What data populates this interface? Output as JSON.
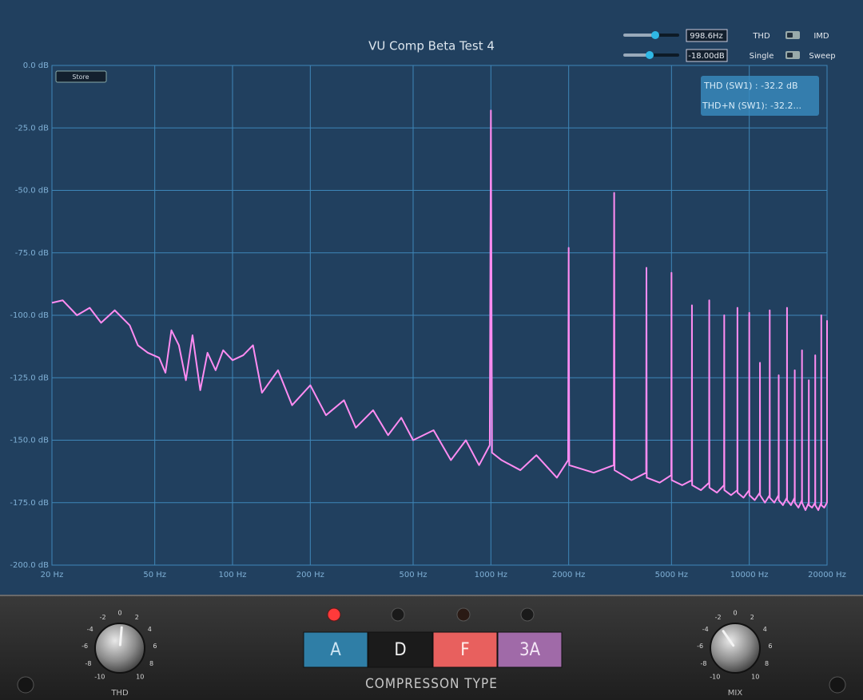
{
  "title": "VU Comp Beta Test 4",
  "store_button": "Store",
  "controls": {
    "frequency": "998.6Hz",
    "level": "-18.00dB",
    "mode_left": "THD",
    "mode_right": "IMD",
    "sweep_left": "Single",
    "sweep_right": "Sweep"
  },
  "info": {
    "thd": "THD (SW1) : -32.2 dB",
    "thdn": "THD+N (SW1): -32.2..."
  },
  "chart_data": {
    "type": "line",
    "xscale": "log",
    "grid": true,
    "color": "#ff8cf2",
    "xlim": [
      20,
      20000
    ],
    "ylim": [
      -200,
      0
    ],
    "xticks": [
      {
        "value": 20,
        "label": "20 Hz"
      },
      {
        "value": 50,
        "label": "50 Hz"
      },
      {
        "value": 100,
        "label": "100 Hz"
      },
      {
        "value": 200,
        "label": "200 Hz"
      },
      {
        "value": 500,
        "label": "500 Hz"
      },
      {
        "value": 1000,
        "label": "1000 Hz"
      },
      {
        "value": 2000,
        "label": "2000 Hz"
      },
      {
        "value": 5000,
        "label": "5000 Hz"
      },
      {
        "value": 10000,
        "label": "10000 Hz"
      },
      {
        "value": 20000,
        "label": "20000 Hz"
      }
    ],
    "yticks": [
      {
        "value": 0,
        "label": "0.0 dB"
      },
      {
        "value": -25,
        "label": "-25.0 dB"
      },
      {
        "value": -50,
        "label": "-50.0 dB"
      },
      {
        "value": -75,
        "label": "-75.0 dB"
      },
      {
        "value": -100,
        "label": "-100.0 dB"
      },
      {
        "value": -125,
        "label": "-125.0 dB"
      },
      {
        "value": -150,
        "label": "-150.0 dB"
      },
      {
        "value": -175,
        "label": "-175.0 dB"
      },
      {
        "value": -200,
        "label": "-200.0 dB"
      }
    ],
    "x": [
      20,
      22,
      25,
      28,
      31,
      35,
      40,
      43,
      47,
      52,
      55,
      58,
      62,
      66,
      70,
      75,
      80,
      86,
      92,
      100,
      110,
      120,
      130,
      150,
      170,
      200,
      230,
      270,
      300,
      350,
      400,
      450,
      500,
      600,
      700,
      800,
      900,
      990,
      1000,
      1010,
      1100,
      1300,
      1500,
      1800,
      1990,
      2000,
      2010,
      2500,
      2990,
      3000,
      3010,
      3500,
      3990,
      4000,
      4010,
      4500,
      4990,
      5000,
      5010,
      5500,
      5990,
      6000,
      6010,
      6500,
      6990,
      7000,
      7010,
      7500,
      7990,
      8000,
      8010,
      8500,
      8990,
      9000,
      9010,
      9500,
      9990,
      10000,
      10010,
      10500,
      10990,
      11000,
      11010,
      11500,
      11990,
      12000,
      12010,
      12500,
      12990,
      13000,
      13010,
      13500,
      13990,
      14000,
      14010,
      14500,
      14990,
      15000,
      15010,
      15500,
      15990,
      16000,
      16010,
      16500,
      16990,
      17000,
      17010,
      17500,
      17990,
      18000,
      18010,
      18500,
      18990,
      19000,
      19010,
      19500,
      19990,
      20000
    ],
    "values": [
      -95,
      -94,
      -100,
      -97,
      -103,
      -98,
      -104,
      -112,
      -115,
      -117,
      -123,
      -106,
      -112,
      -126,
      -108,
      -130,
      -115,
      -122,
      -114,
      -118,
      -116,
      -112,
      -131,
      -122,
      -136,
      -128,
      -140,
      -134,
      -145,
      -138,
      -148,
      -141,
      -150,
      -146,
      -158,
      -150,
      -160,
      -152,
      -18,
      -155,
      -158,
      -162,
      -156,
      -165,
      -158,
      -73,
      -160,
      -163,
      -160,
      -51,
      -162,
      -166,
      -163,
      -81,
      -165,
      -167,
      -164,
      -83,
      -166,
      -168,
      -166,
      -96,
      -168,
      -170,
      -167,
      -94,
      -169,
      -171,
      -168,
      -100,
      -170,
      -172,
      -170,
      -97,
      -171,
      -173,
      -170,
      -99,
      -172,
      -174,
      -171,
      -119,
      -172,
      -175,
      -172,
      -98,
      -173,
      -175,
      -172,
      -124,
      -174,
      -176,
      -173,
      -97,
      -174,
      -176,
      -173,
      -122,
      -175,
      -177,
      -174,
      -114,
      -175,
      -178,
      -175,
      -126,
      -176,
      -177,
      -175,
      -116,
      -176,
      -178,
      -175,
      -100,
      -176,
      -177,
      -175,
      -102
    ]
  },
  "panel": {
    "thd_knob": {
      "scale": [
        -10,
        -8,
        -6,
        -4,
        -2,
        0,
        2,
        4,
        6,
        8,
        10
      ],
      "label": "THD"
    },
    "mix_knob": {
      "scale": [
        -10,
        -8,
        -6,
        -4,
        -2,
        0,
        2,
        4,
        6,
        8,
        10
      ],
      "label": "MIX"
    },
    "types": [
      "A",
      "D",
      "F",
      "3A"
    ],
    "type_label": "COMPRESSON TYPE"
  }
}
